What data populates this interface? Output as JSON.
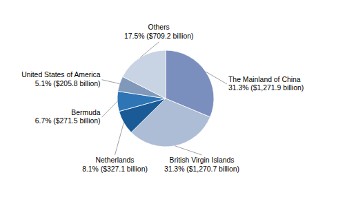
{
  "chart_data": {
    "type": "pie",
    "categories": [
      "The Mainland of China",
      "British Virgin Islands",
      "Netherlands",
      "Bermuda",
      "United States of America",
      "Others"
    ],
    "values": [
      31.3,
      31.3,
      8.1,
      6.7,
      5.1,
      17.5
    ],
    "value_labels": [
      "31.3% ($1,271.9 billion)",
      "31.3% ($1,270.7 billion)",
      "8.1% ($327.1 billion)",
      "6.7% ($271.5 billion)",
      "5.1% ($205.8 billion)",
      "17.5% ($709.2 billion)"
    ],
    "colors": [
      "#7b8fbe",
      "#adbdd6",
      "#1a5a96",
      "#2e75b6",
      "#8099bb",
      "#c8d3e3"
    ]
  }
}
